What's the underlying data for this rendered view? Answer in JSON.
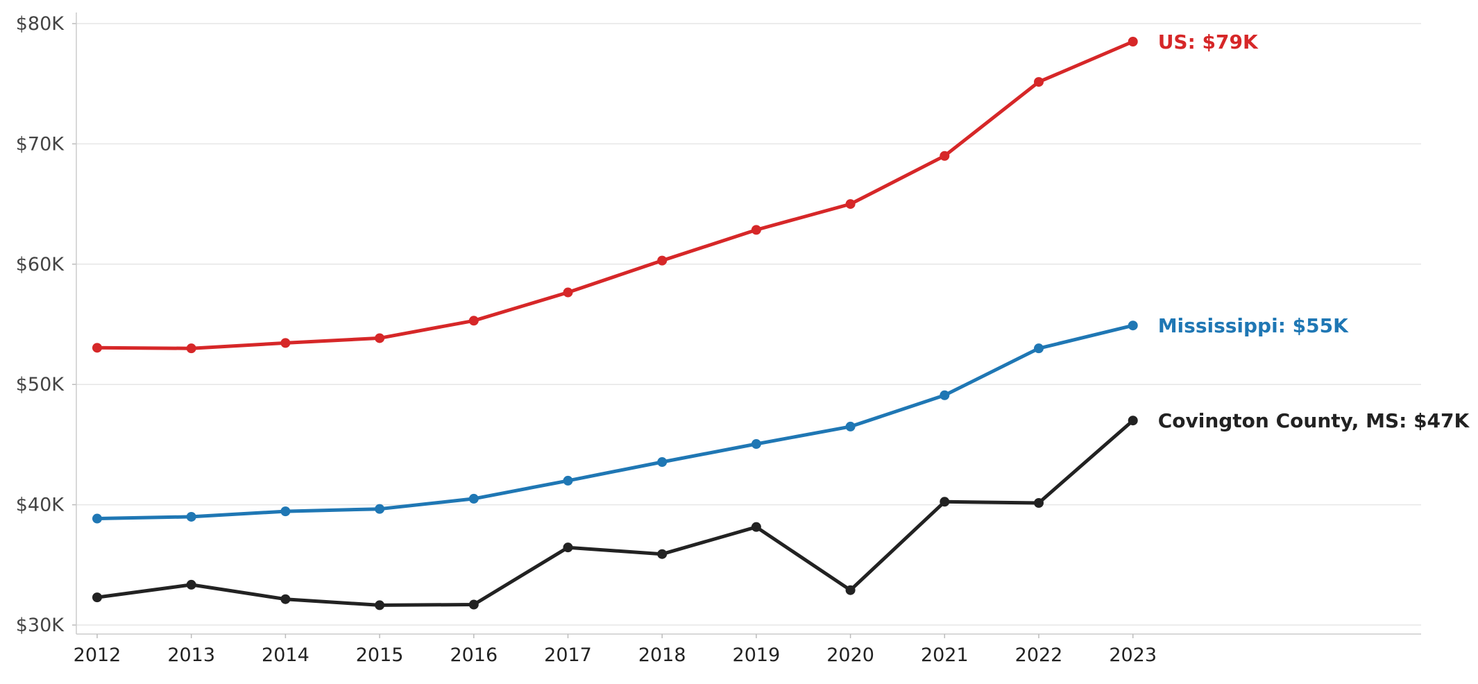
{
  "chart_data": {
    "type": "line",
    "x": [
      2012,
      2013,
      2014,
      2015,
      2016,
      2017,
      2018,
      2019,
      2020,
      2021,
      2022,
      2023
    ],
    "ylim": [
      30000,
      80000
    ],
    "y_ticks": [
      30000,
      40000,
      50000,
      60000,
      70000,
      80000
    ],
    "y_tick_labels": [
      "$30K",
      "$40K",
      "$50K",
      "$60K",
      "$70K",
      "$80K"
    ],
    "x_tick_labels": [
      "2012",
      "2013",
      "2014",
      "2015",
      "2016",
      "2017",
      "2018",
      "2019",
      "2020",
      "2021",
      "2022",
      "2023"
    ],
    "grid": "horizontal",
    "legend": "none",
    "series": [
      {
        "name": "US",
        "end_label": "US: $79K",
        "color": "#d62728",
        "values": [
          53050,
          53000,
          53450,
          53850,
          55300,
          57650,
          60300,
          62850,
          65000,
          69000,
          75150,
          78500
        ]
      },
      {
        "name": "Mississippi",
        "end_label": "Mississippi: $55K",
        "color": "#1f77b4",
        "values": [
          38850,
          39000,
          39450,
          39650,
          40500,
          42000,
          43550,
          45050,
          46500,
          49100,
          53000,
          54900
        ]
      },
      {
        "name": "Covington County, MS",
        "end_label": "Covington County, MS: $47K",
        "color": "#222222",
        "values": [
          32300,
          33350,
          32150,
          31650,
          31700,
          36450,
          35900,
          38150,
          32900,
          40250,
          40150,
          47000
        ]
      }
    ]
  }
}
